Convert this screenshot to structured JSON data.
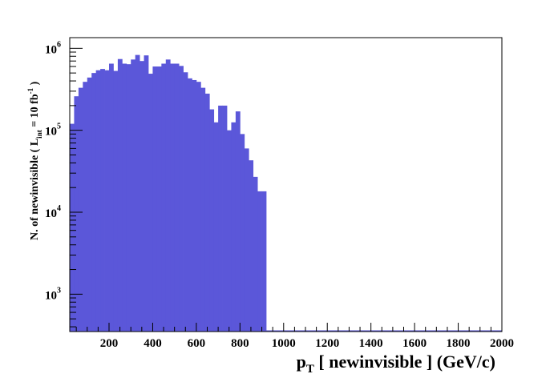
{
  "chart_data": {
    "type": "bar",
    "title": "",
    "xlabel": {
      "main": "p",
      "sub": "T",
      "rest": " [ newinvisible ] (GeV/c)"
    },
    "ylabel": {
      "part1": "N. of newinvisible ( L",
      "sub": "int",
      "part2": " = 10 fb",
      "sup": "-1",
      "part3": " )"
    },
    "xlim": [
      20,
      2000
    ],
    "ylim": [
      350,
      1350000
    ],
    "log_y": true,
    "grid": false,
    "fill_color": "#5b57d9",
    "x_ticks": [
      "200",
      "400",
      "600",
      "800",
      "1000",
      "1200",
      "1400",
      "1600",
      "1800",
      "2000"
    ],
    "y_ticks": [
      {
        "base": "10",
        "exp": "3"
      },
      {
        "base": "10",
        "exp": "4"
      },
      {
        "base": "10",
        "exp": "5"
      },
      {
        "base": "10",
        "exp": "6"
      }
    ],
    "bin_edges_start": 20,
    "bin_width": 20,
    "values": [
      120000,
      260000,
      330000,
      390000,
      440000,
      500000,
      540000,
      560000,
      540000,
      650000,
      530000,
      740000,
      650000,
      640000,
      730000,
      830000,
      700000,
      820000,
      490000,
      600000,
      600000,
      650000,
      730000,
      650000,
      650000,
      610000,
      510000,
      430000,
      410000,
      390000,
      330000,
      280000,
      180000,
      125000,
      200000,
      200000,
      100000,
      125000,
      170000,
      90000,
      60000,
      43000,
      27000,
      18000,
      18000
    ]
  }
}
